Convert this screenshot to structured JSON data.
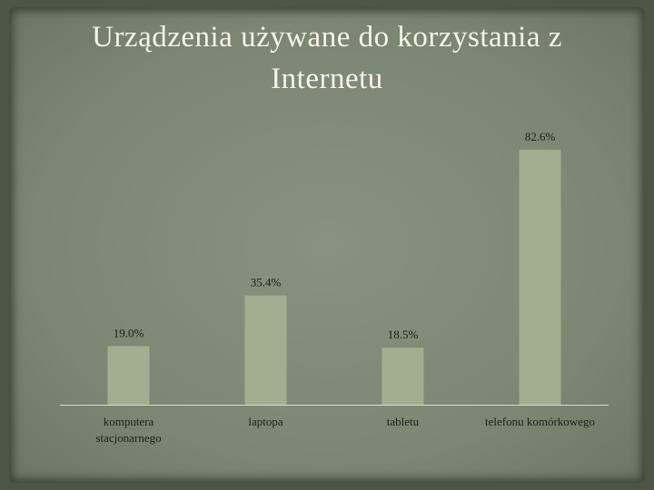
{
  "chart_data": {
    "type": "bar",
    "title": "Urządzenia używane do korzystania z Internetu",
    "categories": [
      "komputera stacjonarnego",
      "laptopa",
      "tabletu",
      "telefonu komórkowego"
    ],
    "values": [
      19.0,
      35.4,
      18.5,
      82.6
    ],
    "value_labels": [
      "19.0%",
      "35.4%",
      "18.5%",
      "82.6%"
    ],
    "color": "#a3ae8e",
    "ylim": [
      0,
      90
    ]
  }
}
